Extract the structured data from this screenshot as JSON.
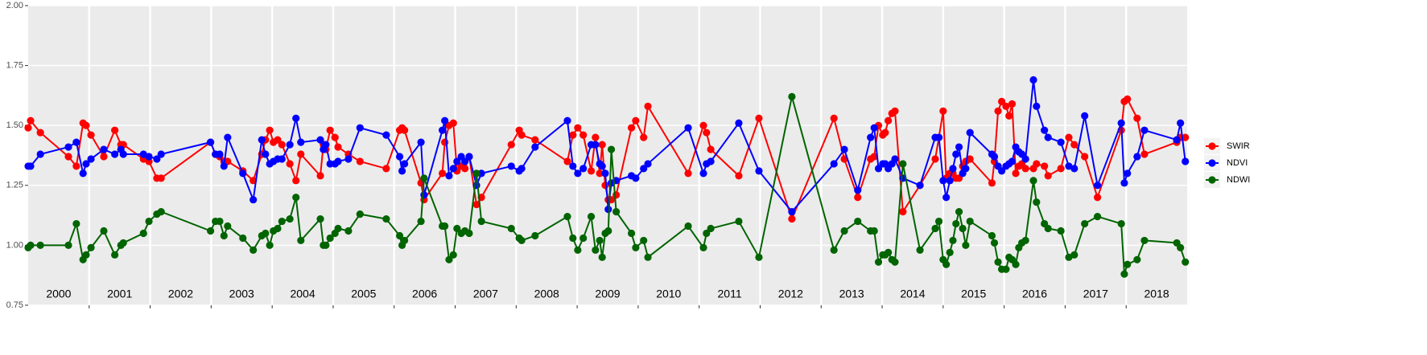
{
  "chart_data": {
    "type": "line",
    "x": [
      2000.0,
      2000.04,
      2000.2,
      2000.66,
      2000.79,
      2000.9,
      2000.95,
      2001.03,
      2001.24,
      2001.42,
      2001.52,
      2001.56,
      2001.89,
      2001.98,
      2002.11,
      2002.18,
      2002.99,
      2003.07,
      2003.14,
      2003.21,
      2003.27,
      2003.52,
      2003.69,
      2003.83,
      2003.89,
      2003.96,
      2004.02,
      2004.09,
      2004.16,
      2004.29,
      2004.39,
      2004.47,
      2004.79,
      2004.84,
      2004.88,
      2004.95,
      2005.03,
      2005.08,
      2005.25,
      2005.44,
      2005.87,
      2006.09,
      2006.13,
      2006.17,
      2006.44,
      2006.49,
      2006.79,
      2006.83,
      2006.9,
      2006.97,
      2007.03,
      2007.1,
      2007.16,
      2007.23,
      2007.35,
      2007.43,
      2007.92,
      2008.05,
      2008.09,
      2008.31,
      2008.84,
      2008.93,
      2009.01,
      2009.1,
      2009.23,
      2009.3,
      2009.37,
      2009.41,
      2009.46,
      2009.51,
      2009.56,
      2009.64,
      2009.89,
      2009.96,
      2010.09,
      2010.16,
      2010.82,
      2011.07,
      2011.12,
      2011.19,
      2011.65,
      2011.98,
      2012.52,
      2013.21,
      2013.38,
      2013.6,
      2013.81,
      2013.87,
      2013.94,
      2014.01,
      2014.05,
      2014.1,
      2014.16,
      2014.21,
      2014.34,
      2014.62,
      2014.87,
      2014.93,
      2015.0,
      2015.05,
      2015.11,
      2015.16,
      2015.21,
      2015.26,
      2015.32,
      2015.37,
      2015.44,
      2015.8,
      2015.84,
      2015.9,
      2015.96,
      2016.03,
      2016.08,
      2016.13,
      2016.19,
      2016.24,
      2016.29,
      2016.35,
      2016.48,
      2016.53,
      2016.66,
      2016.72,
      2016.93,
      2017.06,
      2017.15,
      2017.32,
      2017.53,
      2017.92,
      2017.97,
      2018.02,
      2018.18,
      2018.3,
      2018.83,
      2018.89,
      2018.97
    ],
    "series": [
      {
        "name": "SWIR",
        "color": "#ff0000",
        "values": [
          1.49,
          1.52,
          1.47,
          1.37,
          1.33,
          1.51,
          1.5,
          1.46,
          1.37,
          1.48,
          1.42,
          1.42,
          1.36,
          1.35,
          1.28,
          1.28,
          1.43,
          1.38,
          1.37,
          1.35,
          1.35,
          1.31,
          1.27,
          1.38,
          1.44,
          1.48,
          1.43,
          1.44,
          1.42,
          1.34,
          1.27,
          1.38,
          1.29,
          1.42,
          1.4,
          1.48,
          1.45,
          1.41,
          1.38,
          1.35,
          1.32,
          1.48,
          1.49,
          1.48,
          1.26,
          1.19,
          1.3,
          1.43,
          1.5,
          1.51,
          1.31,
          1.33,
          1.32,
          1.37,
          1.17,
          1.2,
          1.42,
          1.48,
          1.46,
          1.44,
          1.35,
          1.46,
          1.49,
          1.46,
          1.31,
          1.45,
          1.3,
          1.42,
          1.25,
          1.19,
          1.19,
          1.21,
          1.49,
          1.52,
          1.45,
          1.58,
          1.3,
          1.5,
          1.47,
          1.4,
          1.29,
          1.53,
          1.11,
          1.53,
          1.36,
          1.2,
          1.36,
          1.37,
          1.5,
          1.46,
          1.47,
          1.52,
          1.55,
          1.56,
          1.14,
          1.25,
          1.36,
          1.45,
          1.56,
          1.28,
          1.3,
          1.3,
          1.28,
          1.28,
          1.33,
          1.35,
          1.36,
          1.26,
          1.35,
          1.56,
          1.6,
          1.58,
          1.54,
          1.59,
          1.3,
          1.33,
          1.34,
          1.32,
          1.32,
          1.34,
          1.33,
          1.29,
          1.32,
          1.45,
          1.42,
          1.37,
          1.2,
          1.48,
          1.6,
          1.61,
          1.53,
          1.38,
          1.43,
          1.45,
          1.45
        ]
      },
      {
        "name": "NDVI",
        "color": "#0000ff",
        "values": [
          1.33,
          1.33,
          1.38,
          1.41,
          1.43,
          1.3,
          1.34,
          1.36,
          1.4,
          1.38,
          1.4,
          1.38,
          1.38,
          1.37,
          1.36,
          1.38,
          1.43,
          1.38,
          1.38,
          1.33,
          1.45,
          1.3,
          1.19,
          1.44,
          1.38,
          1.34,
          1.35,
          1.36,
          1.36,
          1.42,
          1.53,
          1.43,
          1.44,
          1.4,
          1.42,
          1.34,
          1.34,
          1.35,
          1.36,
          1.49,
          1.46,
          1.37,
          1.31,
          1.34,
          1.43,
          1.21,
          1.48,
          1.52,
          1.29,
          1.32,
          1.35,
          1.37,
          1.35,
          1.37,
          1.25,
          1.3,
          1.33,
          1.31,
          1.32,
          1.41,
          1.52,
          1.33,
          1.3,
          1.32,
          1.42,
          1.42,
          1.34,
          1.33,
          1.3,
          1.15,
          1.26,
          1.27,
          1.29,
          1.28,
          1.32,
          1.34,
          1.49,
          1.3,
          1.34,
          1.35,
          1.51,
          1.31,
          1.14,
          1.34,
          1.4,
          1.23,
          1.45,
          1.49,
          1.32,
          1.34,
          1.34,
          1.32,
          1.34,
          1.36,
          1.28,
          1.25,
          1.45,
          1.45,
          1.27,
          1.2,
          1.27,
          1.32,
          1.38,
          1.41,
          1.3,
          1.32,
          1.47,
          1.38,
          1.37,
          1.33,
          1.31,
          1.33,
          1.34,
          1.35,
          1.41,
          1.39,
          1.38,
          1.36,
          1.69,
          1.58,
          1.48,
          1.45,
          1.43,
          1.33,
          1.32,
          1.54,
          1.25,
          1.51,
          1.26,
          1.3,
          1.37,
          1.48,
          1.44,
          1.51,
          1.35
        ]
      },
      {
        "name": "NDWI",
        "color": "#006400",
        "values": [
          0.99,
          1.0,
          1.0,
          1.0,
          1.09,
          0.94,
          0.96,
          0.99,
          1.06,
          0.96,
          1.0,
          1.01,
          1.05,
          1.1,
          1.13,
          1.14,
          1.06,
          1.1,
          1.1,
          1.04,
          1.08,
          1.03,
          0.98,
          1.04,
          1.05,
          1.0,
          1.06,
          1.07,
          1.1,
          1.11,
          1.2,
          1.02,
          1.11,
          1.0,
          1.0,
          1.03,
          1.05,
          1.07,
          1.06,
          1.13,
          1.11,
          1.04,
          1.0,
          1.02,
          1.1,
          1.28,
          1.08,
          1.08,
          0.94,
          0.96,
          1.07,
          1.05,
          1.06,
          1.05,
          1.3,
          1.1,
          1.07,
          1.03,
          1.02,
          1.04,
          1.12,
          1.03,
          0.98,
          1.03,
          1.12,
          0.98,
          1.02,
          0.95,
          1.05,
          1.06,
          1.4,
          1.14,
          1.05,
          0.99,
          1.02,
          0.95,
          1.08,
          0.99,
          1.05,
          1.07,
          1.1,
          0.95,
          1.62,
          0.98,
          1.06,
          1.1,
          1.06,
          1.06,
          0.93,
          0.96,
          0.96,
          0.97,
          0.94,
          0.93,
          1.34,
          0.98,
          1.07,
          1.1,
          0.94,
          0.92,
          0.97,
          1.02,
          1.09,
          1.14,
          1.07,
          1.0,
          1.1,
          1.04,
          1.01,
          0.93,
          0.9,
          0.9,
          0.95,
          0.94,
          0.92,
          0.99,
          1.01,
          1.02,
          1.27,
          1.18,
          1.09,
          1.07,
          1.06,
          0.95,
          0.96,
          1.09,
          1.12,
          1.09,
          0.88,
          0.92,
          0.94,
          1.02,
          1.01,
          0.99,
          0.93
        ]
      }
    ],
    "xlim": [
      2000,
      2019
    ],
    "xticks": [
      2001,
      2002,
      2003,
      2004,
      2005,
      2006,
      2007,
      2008,
      2009,
      2010,
      2011,
      2012,
      2013,
      2014,
      2015,
      2016,
      2017,
      2018
    ],
    "year_labels": [
      "2000",
      "2001",
      "2002",
      "2003",
      "2004",
      "2005",
      "2006",
      "2007",
      "2008",
      "2009",
      "2010",
      "2011",
      "2012",
      "2013",
      "2014",
      "2015",
      "2016",
      "2017",
      "2018"
    ],
    "ylim": [
      0.75,
      2.0
    ],
    "yticks": [
      {
        "value": 0.75,
        "label": "0.75"
      },
      {
        "value": 1.0,
        "label": "1.00"
      },
      {
        "value": 1.25,
        "label": "1.25"
      },
      {
        "value": 1.5,
        "label": "1.50"
      },
      {
        "value": 1.75,
        "label": "1.75"
      },
      {
        "value": 2.0,
        "label": "2.00"
      }
    ],
    "grid": true,
    "legend": "right"
  }
}
